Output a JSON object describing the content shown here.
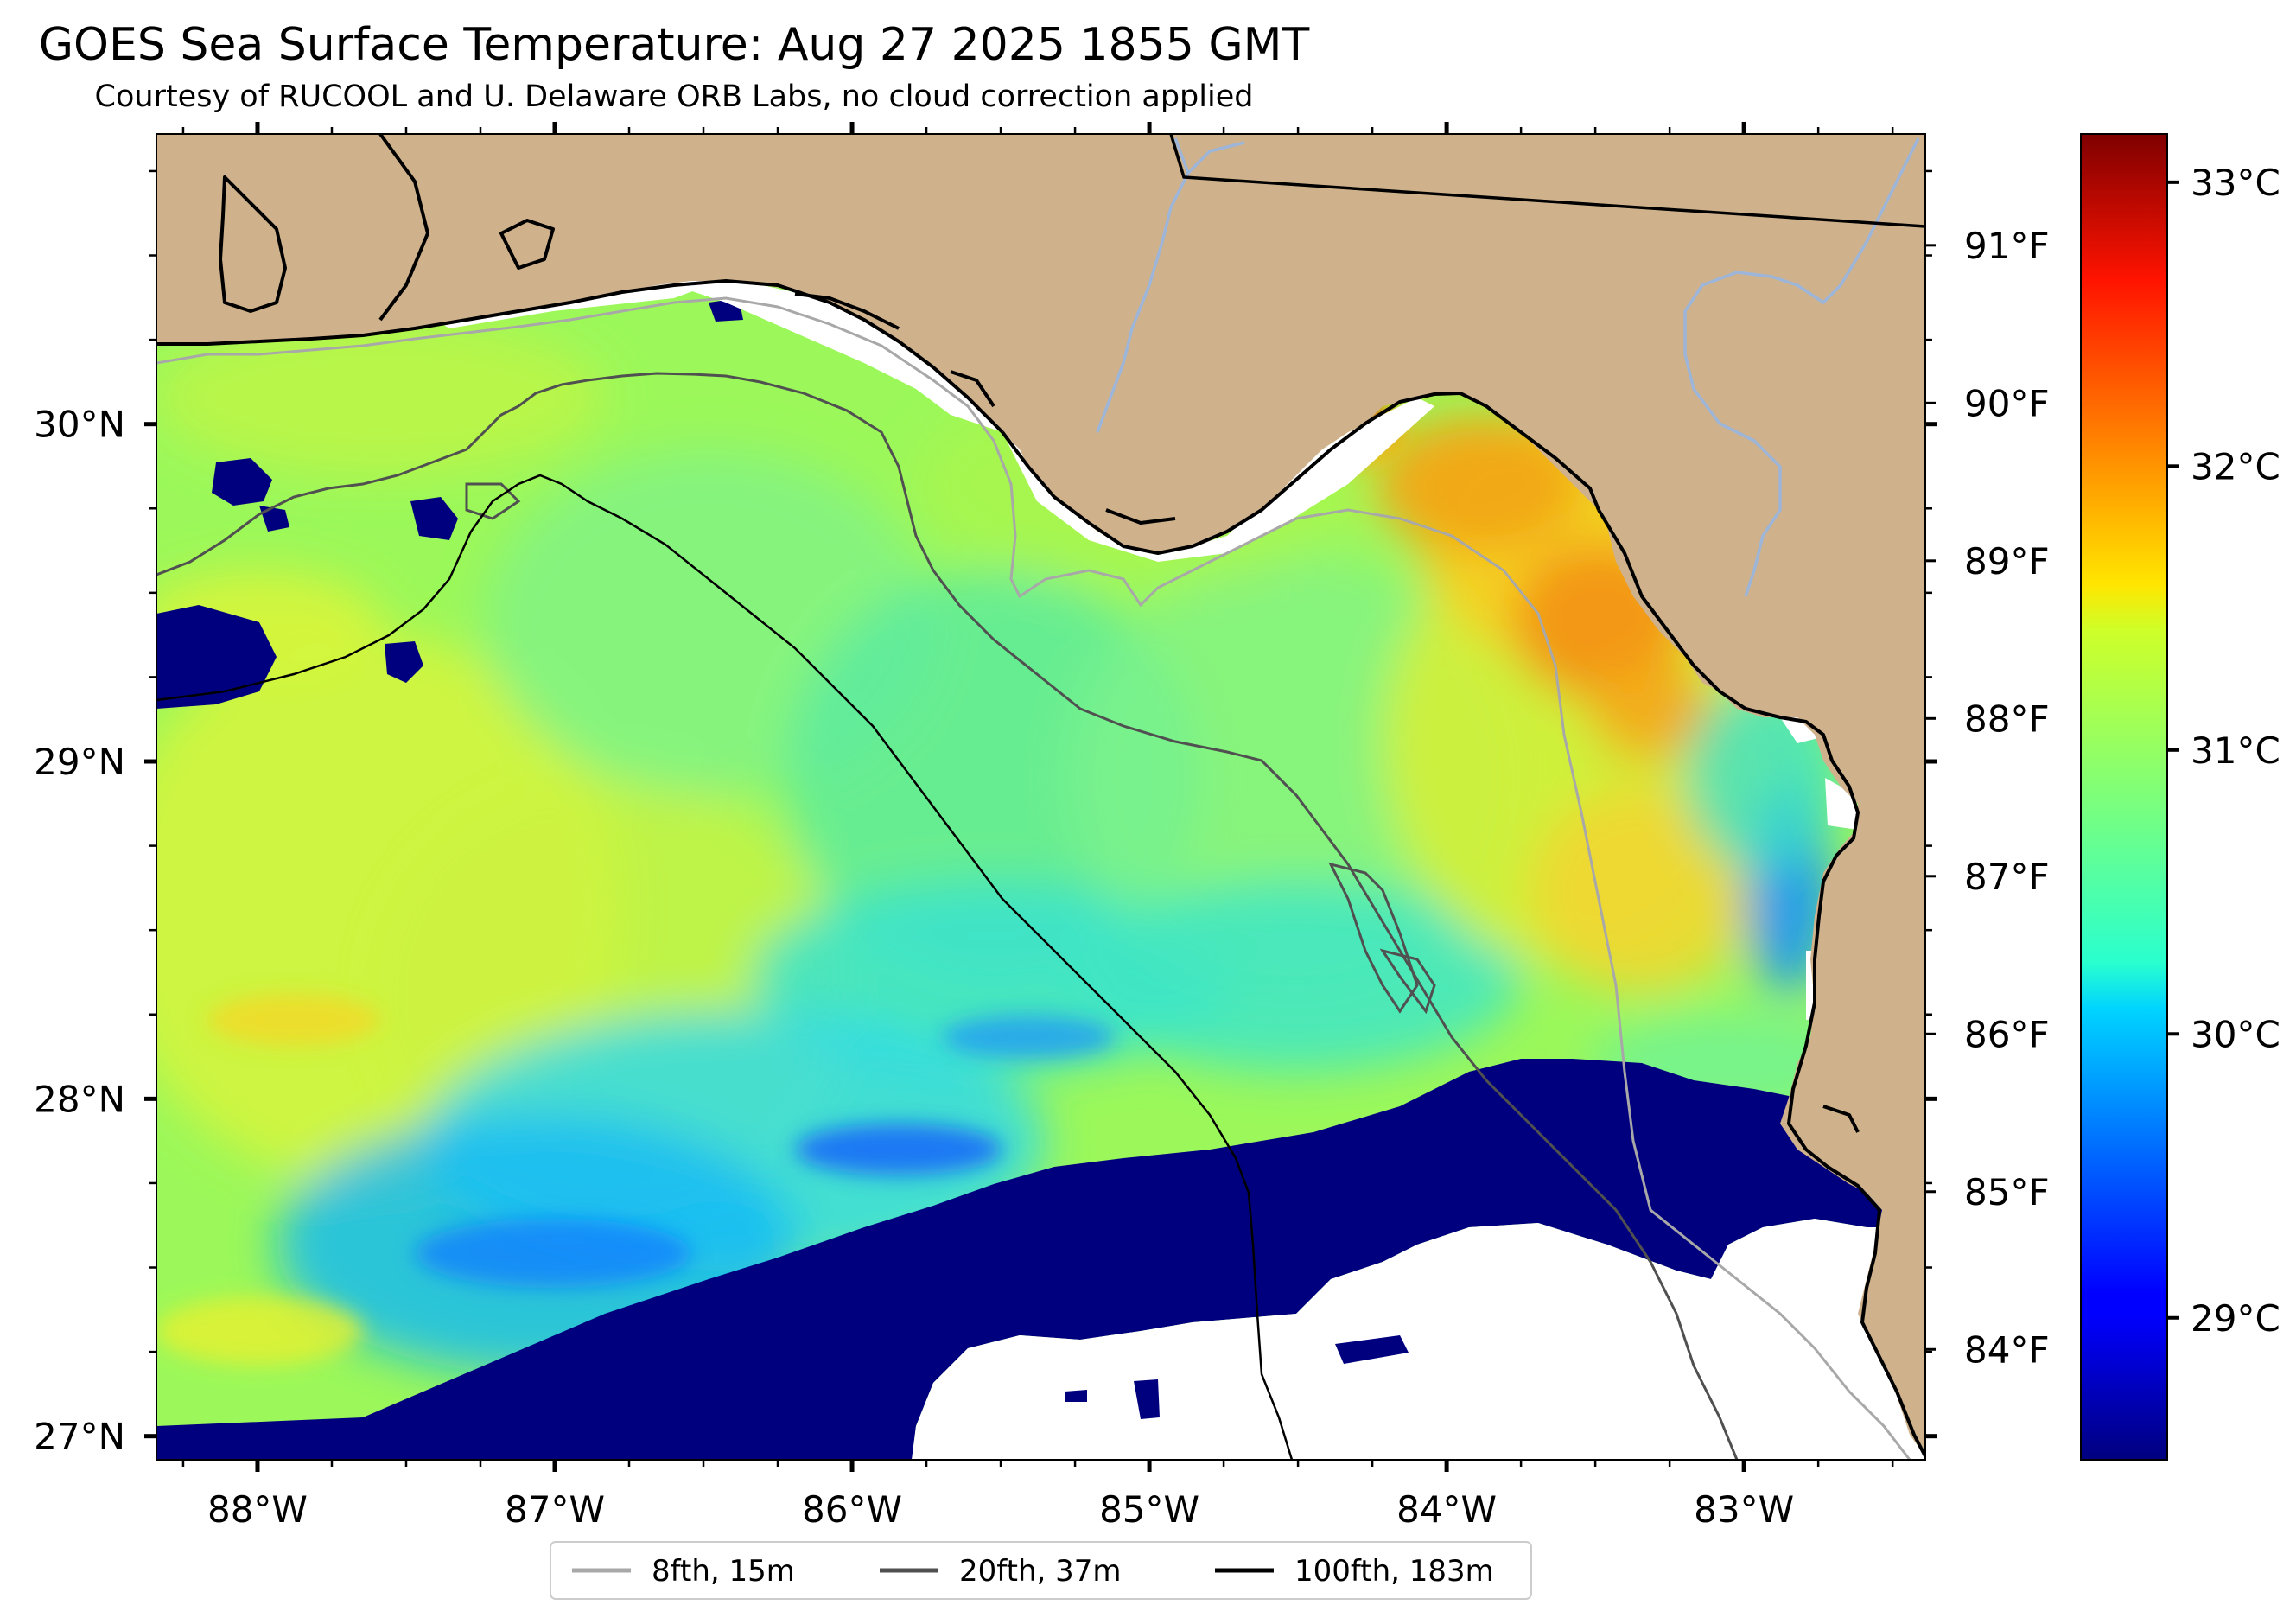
{
  "title": "GOES Sea Surface Temperature: Aug 27 2025 1855 GMT",
  "subtitle": "Courtesy of RUCOOL and U. Delaware ORB Labs, no cloud correction applied",
  "map": {
    "lat_labels": [
      "30°N",
      "29°N",
      "28°N",
      "27°N"
    ],
    "lat_values": [
      30,
      29,
      28,
      27
    ],
    "lon_labels": [
      "88°W",
      "87°W",
      "86°W",
      "85°W",
      "84°W",
      "83°W"
    ],
    "lon_values": [
      -88,
      -87,
      -86,
      -85,
      -84,
      -83
    ],
    "extent": {
      "lon_min": -88.34,
      "lon_max": -82.39,
      "lat_min": 26.93,
      "lat_max": 30.86
    }
  },
  "fahrenheit_scale": {
    "labels": [
      "91°F",
      "90°F",
      "89°F",
      "88°F",
      "87°F",
      "86°F",
      "85°F",
      "84°F"
    ],
    "values": [
      91,
      90,
      89,
      88,
      87,
      86,
      85,
      84
    ]
  },
  "colorbar": {
    "labels": [
      "33°C",
      "32°C",
      "31°C",
      "30°C",
      "29°C"
    ],
    "values": [
      33,
      32,
      31,
      30,
      29
    ],
    "range": [
      28.5,
      33.17
    ],
    "colormap": "jet"
  },
  "legend": {
    "items": [
      {
        "label": "8fth, 15m",
        "color": "#a8a8a8"
      },
      {
        "label": "20fth, 37m",
        "color": "#505050"
      },
      {
        "label": "100fth, 183m",
        "color": "#000000"
      }
    ]
  },
  "colors": {
    "land": "#cfb28c",
    "no_data": "#ffffff",
    "river": "#9cb5d8",
    "coastline": "#000000"
  }
}
